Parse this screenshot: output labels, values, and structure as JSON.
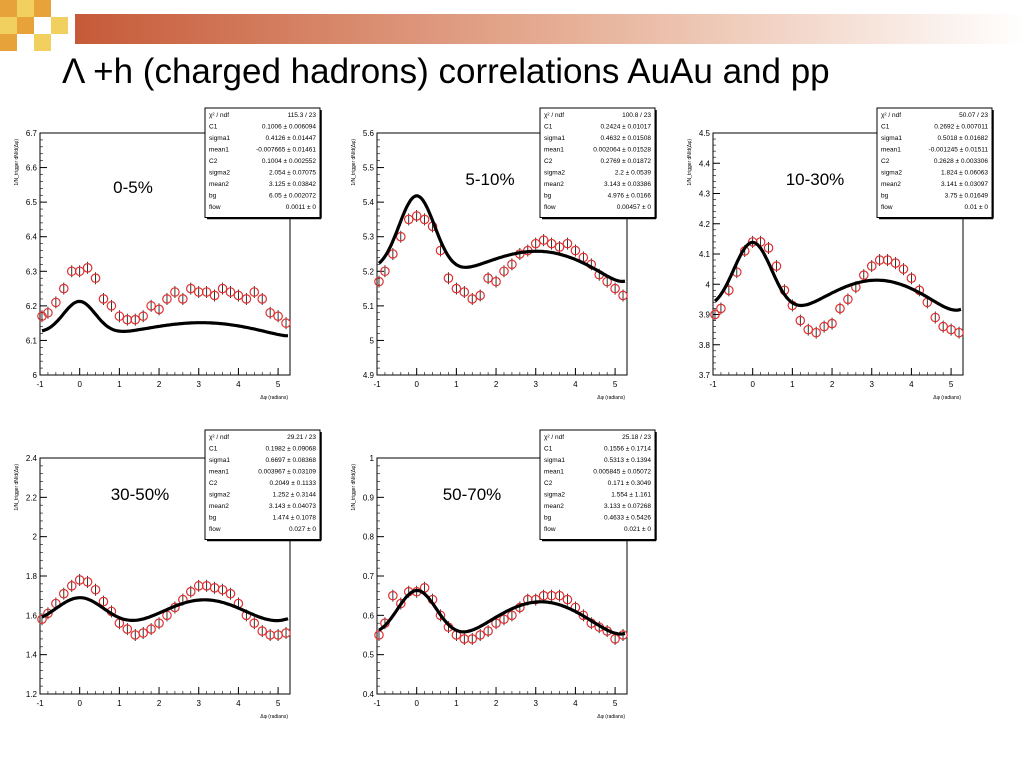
{
  "slide": {
    "title": "Λ +h (charged hadrons) correlations AuAu and pp",
    "colors": {
      "accent_orange": "#E8A23A",
      "accent_yellow": "#F2D060",
      "bar_start": "#C65A38",
      "marker": "#E03030",
      "fit": "#000000"
    }
  },
  "stats_labels": [
    "χ² / ndf",
    "C1",
    "sigma1",
    "mean1",
    "C2",
    "sigma2",
    "mean2",
    "bg",
    "flow"
  ],
  "chart_data": [
    {
      "type": "scatter",
      "centrality": "0-5%",
      "xlabel": "Δφ (radians)",
      "ylabel": "1/N_trigger dN/d(Δφ)",
      "xlim": [
        -1,
        5.3
      ],
      "ylim": [
        6,
        6.7
      ],
      "yticks": [
        "6",
        "6.1",
        "6.2",
        "6.3",
        "6.4",
        "6.5",
        "6.6",
        "6.7"
      ],
      "xticks": [
        "-1",
        "0",
        "1",
        "2",
        "3",
        "4",
        "5"
      ],
      "fit": {
        "C1": 0.1006,
        "sigma1": 0.4126,
        "mean1": -0.0077,
        "C2": 0.1004,
        "sigma2": 2.054,
        "mean2": 3.125,
        "bg": 6.05
      },
      "stats": [
        "115.3 / 23",
        "0.1006 ± 0.006094",
        "0.4126 ± 0.01447",
        "-0.007665 ± 0.01461",
        "0.1004 ± 0.002552",
        "2.054 ± 0.07075",
        "3.125 ± 0.03842",
        "6.05 ± 0.002072",
        "0.0011 ± 0"
      ],
      "x": [
        -0.95,
        -0.8,
        -0.6,
        -0.4,
        -0.2,
        0.0,
        0.2,
        0.4,
        0.6,
        0.8,
        1.0,
        1.2,
        1.4,
        1.6,
        1.8,
        2.0,
        2.2,
        2.4,
        2.6,
        2.8,
        3.0,
        3.2,
        3.4,
        3.6,
        3.8,
        4.0,
        4.2,
        4.4,
        4.6,
        4.8,
        5.0,
        5.2
      ],
      "y": [
        6.17,
        6.18,
        6.21,
        6.25,
        6.3,
        6.3,
        6.31,
        6.28,
        6.22,
        6.2,
        6.17,
        6.16,
        6.16,
        6.17,
        6.2,
        6.19,
        6.22,
        6.24,
        6.22,
        6.25,
        6.24,
        6.24,
        6.23,
        6.25,
        6.24,
        6.23,
        6.22,
        6.24,
        6.22,
        6.18,
        6.17,
        6.15
      ]
    },
    {
      "type": "scatter",
      "centrality": "5-10%",
      "xlabel": "Δφ (radians)",
      "ylabel": "1/N_trigger dN/d(Δφ)",
      "xlim": [
        -1,
        5.3
      ],
      "ylim": [
        4.9,
        5.6
      ],
      "yticks": [
        "4.9",
        "5",
        "5.1",
        "5.2",
        "5.3",
        "5.4",
        "5.5",
        "5.6"
      ],
      "xticks": [
        "-1",
        "0",
        "1",
        "2",
        "3",
        "4",
        "5"
      ],
      "fit": {
        "C1": 0.2424,
        "sigma1": 0.4632,
        "mean1": 0.0021,
        "C2": 0.2769,
        "sigma2": 2.2,
        "mean2": 3.143,
        "bg": 4.976
      },
      "stats": [
        "100.8 / 23",
        "0.2424 ± 0.01017",
        "0.4632 ± 0.01508",
        "0.002064 ± 0.01528",
        "0.2769 ± 0.01872",
        "2.2 ± 0.0539",
        "3.143 ± 0.03386",
        "4.976 ± 0.0166",
        "0.00457 ± 0"
      ],
      "x": [
        -0.95,
        -0.8,
        -0.6,
        -0.4,
        -0.2,
        0.0,
        0.2,
        0.4,
        0.6,
        0.8,
        1.0,
        1.2,
        1.4,
        1.6,
        1.8,
        2.0,
        2.2,
        2.4,
        2.6,
        2.8,
        3.0,
        3.2,
        3.4,
        3.6,
        3.8,
        4.0,
        4.2,
        4.4,
        4.6,
        4.8,
        5.0,
        5.2
      ],
      "y": [
        5.17,
        5.2,
        5.25,
        5.3,
        5.35,
        5.36,
        5.35,
        5.33,
        5.26,
        5.18,
        5.15,
        5.14,
        5.12,
        5.13,
        5.18,
        5.17,
        5.2,
        5.22,
        5.25,
        5.26,
        5.28,
        5.29,
        5.28,
        5.27,
        5.28,
        5.26,
        5.24,
        5.22,
        5.19,
        5.17,
        5.15,
        5.13
      ]
    },
    {
      "type": "scatter",
      "centrality": "10-30%",
      "xlabel": "Δφ (radians)",
      "ylabel": "1/N_trigger dN/d(Δφ)",
      "xlim": [
        -1,
        5.3
      ],
      "ylim": [
        3.7,
        4.5
      ],
      "yticks": [
        "3.7",
        "3.8",
        "3.9",
        "4",
        "4.1",
        "4.2",
        "4.3",
        "4.4",
        "4.5"
      ],
      "xticks": [
        "-1",
        "0",
        "1",
        "2",
        "3",
        "4",
        "5"
      ],
      "fit": {
        "C1": 0.2692,
        "sigma1": 0.5018,
        "mean1": -0.0012,
        "C2": 0.2628,
        "sigma2": 1.824,
        "mean2": 3.141,
        "bg": 3.75
      },
      "stats": [
        "50.07 / 23",
        "0.2692 ± 0.007011",
        "0.5018 ± 0.01682",
        "-0.001245 ± 0.01511",
        "0.2628 ± 0.003306",
        "1.824 ± 0.06063",
        "3.141 ± 0.03097",
        "3.75 ± 0.01649",
        "0.01 ± 0"
      ],
      "x": [
        -0.95,
        -0.8,
        -0.6,
        -0.4,
        -0.2,
        0.0,
        0.2,
        0.4,
        0.6,
        0.8,
        1.0,
        1.2,
        1.4,
        1.6,
        1.8,
        2.0,
        2.2,
        2.4,
        2.6,
        2.8,
        3.0,
        3.2,
        3.4,
        3.6,
        3.8,
        4.0,
        4.2,
        4.4,
        4.6,
        4.8,
        5.0,
        5.2
      ],
      "y": [
        3.9,
        3.92,
        3.98,
        4.04,
        4.11,
        4.14,
        4.14,
        4.12,
        4.06,
        3.98,
        3.93,
        3.88,
        3.85,
        3.84,
        3.86,
        3.87,
        3.92,
        3.95,
        3.99,
        4.03,
        4.06,
        4.08,
        4.08,
        4.07,
        4.05,
        4.02,
        3.98,
        3.94,
        3.89,
        3.86,
        3.85,
        3.84
      ]
    },
    {
      "type": "scatter",
      "centrality": "30-50%",
      "xlabel": "Δφ (radians)",
      "ylabel": "1/N_trigger dN/d(Δφ)",
      "xlim": [
        -1,
        5.3
      ],
      "ylim": [
        1.2,
        2.4
      ],
      "yticks": [
        "1.2",
        "1.4",
        "1.6",
        "1.8",
        "2",
        "2.2",
        "2.4"
      ],
      "xticks": [
        "-1",
        "0",
        "1",
        "2",
        "3",
        "4",
        "5"
      ],
      "fit": {
        "C1": 0.1982,
        "sigma1": 0.6697,
        "mean1": 0.004,
        "C2": 0.2049,
        "sigma2": 1.252,
        "mean2": 3.143,
        "bg": 1.474
      },
      "stats": [
        "29.21 / 23",
        "0.1982 ± 0.09068",
        "0.6697 ± 0.08368",
        "0.003967 ± 0.03109",
        "0.2049 ± 0.1133",
        "1.252 ± 0.3144",
        "3.143 ± 0.04073",
        "1.474 ± 0.1078",
        "0.027 ± 0"
      ],
      "x": [
        -0.95,
        -0.8,
        -0.6,
        -0.4,
        -0.2,
        0.0,
        0.2,
        0.4,
        0.6,
        0.8,
        1.0,
        1.2,
        1.4,
        1.6,
        1.8,
        2.0,
        2.2,
        2.4,
        2.6,
        2.8,
        3.0,
        3.2,
        3.4,
        3.6,
        3.8,
        4.0,
        4.2,
        4.4,
        4.6,
        4.8,
        5.0,
        5.2
      ],
      "y": [
        1.58,
        1.61,
        1.66,
        1.71,
        1.75,
        1.78,
        1.77,
        1.73,
        1.67,
        1.62,
        1.56,
        1.53,
        1.5,
        1.51,
        1.53,
        1.56,
        1.6,
        1.64,
        1.68,
        1.72,
        1.75,
        1.75,
        1.74,
        1.73,
        1.71,
        1.66,
        1.6,
        1.56,
        1.52,
        1.5,
        1.5,
        1.51
      ]
    },
    {
      "type": "scatter",
      "centrality": "50-70%",
      "xlabel": "Δφ (radians)",
      "ylabel": "1/N_trigger dN/d(Δφ)",
      "xlim": [
        -1,
        5.3
      ],
      "ylim": [
        0.4,
        1
      ],
      "yticks": [
        "0.4",
        "0.5",
        "0.6",
        "0.7",
        "0.8",
        "0.9",
        "1"
      ],
      "xticks": [
        "-1",
        "0",
        "1",
        "2",
        "3",
        "4",
        "5"
      ],
      "fit": {
        "C1": 0.1556,
        "sigma1": 0.5313,
        "mean1": 0.0058,
        "C2": 0.171,
        "sigma2": 1.554,
        "mean2": 3.133,
        "bg": 0.4633
      },
      "stats": [
        "25.18 / 23",
        "0.1556 ± 0.1714",
        "0.5313 ± 0.1394",
        "0.005845 ± 0.05072",
        "0.171 ± 0.3049",
        "1.554 ± 1.161",
        "3.133 ± 0.07268",
        "0.4633 ± 0.5426",
        "0.021 ± 0"
      ],
      "x": [
        -0.95,
        -0.8,
        -0.6,
        -0.4,
        -0.2,
        0.0,
        0.2,
        0.4,
        0.6,
        0.8,
        1.0,
        1.2,
        1.4,
        1.6,
        1.8,
        2.0,
        2.2,
        2.4,
        2.6,
        2.8,
        3.0,
        3.2,
        3.4,
        3.6,
        3.8,
        4.0,
        4.2,
        4.4,
        4.6,
        4.8,
        5.0,
        5.2
      ],
      "y": [
        0.55,
        0.58,
        0.65,
        0.63,
        0.66,
        0.66,
        0.67,
        0.64,
        0.6,
        0.57,
        0.55,
        0.54,
        0.54,
        0.55,
        0.56,
        0.58,
        0.59,
        0.6,
        0.62,
        0.64,
        0.64,
        0.65,
        0.65,
        0.65,
        0.64,
        0.62,
        0.6,
        0.58,
        0.57,
        0.56,
        0.54,
        0.55
      ]
    }
  ]
}
